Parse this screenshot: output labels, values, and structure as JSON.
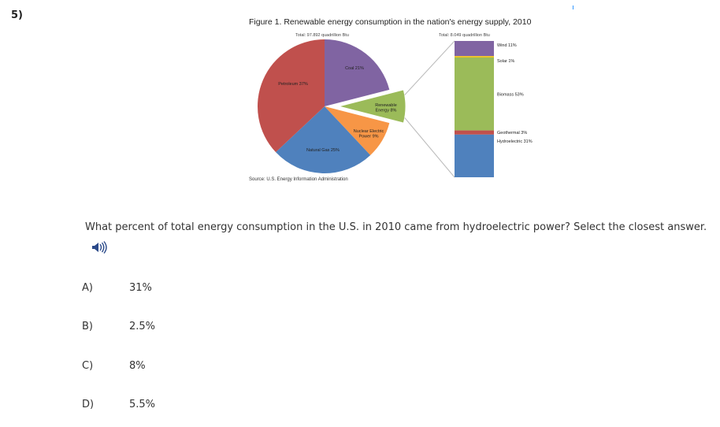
{
  "question_number": "5)",
  "question": "What percent of total energy consumption in the U.S. in 2010 came from hydroelectric power? Select the closest answer.",
  "options": [
    {
      "letter": "A)",
      "text": "31%"
    },
    {
      "letter": "B)",
      "text": "2.5%"
    },
    {
      "letter": "C)",
      "text": "8%"
    },
    {
      "letter": "D)",
      "text": "5.5%"
    }
  ],
  "chart_data": [
    {
      "type": "pie",
      "title": "Figure 1.  Renewable energy consumption in the nation's energy supply, 2010",
      "subtitle": "Total:  97.892 quadrillion Btu",
      "source": "Source:  U.S. Energy Information Administration",
      "slices": [
        {
          "name": "Coal",
          "label": "Coal  21%",
          "value": 21,
          "color": "#8064a2"
        },
        {
          "name": "Renewable Energy",
          "label": "Renewable|Energy  8%",
          "value": 8,
          "color": "#9bbb59",
          "exploded": true
        },
        {
          "name": "Nuclear Electric Power",
          "label": "Nuclear Electric|Power  9%",
          "value": 9,
          "color": "#f79646"
        },
        {
          "name": "Natural Gas",
          "label": "Natural Gas  25%",
          "value": 25,
          "color": "#4f81bd"
        },
        {
          "name": "Petroleum",
          "label": "Petroleum  37%",
          "value": 37,
          "color": "#c0504d"
        }
      ]
    },
    {
      "type": "bar",
      "stacked": true,
      "subtitle": "Total:  8.049 quadrillion Btu",
      "segments": [
        {
          "name": "Wind",
          "label": "Wind  11%",
          "value": 11,
          "color": "#8064a2"
        },
        {
          "name": "Solar",
          "label": "Solar  1%",
          "value": 1,
          "color": "#f2c314"
        },
        {
          "name": "Biomass",
          "label": "Biomass  53%",
          "value": 53,
          "color": "#9bbb59"
        },
        {
          "name": "Geothermal",
          "label": "Geothermal  3%",
          "value": 3,
          "color": "#c0504d"
        },
        {
          "name": "Hydroelectric",
          "label": "Hydroelectric  31%",
          "value": 31,
          "color": "#4f81bd"
        }
      ]
    }
  ]
}
